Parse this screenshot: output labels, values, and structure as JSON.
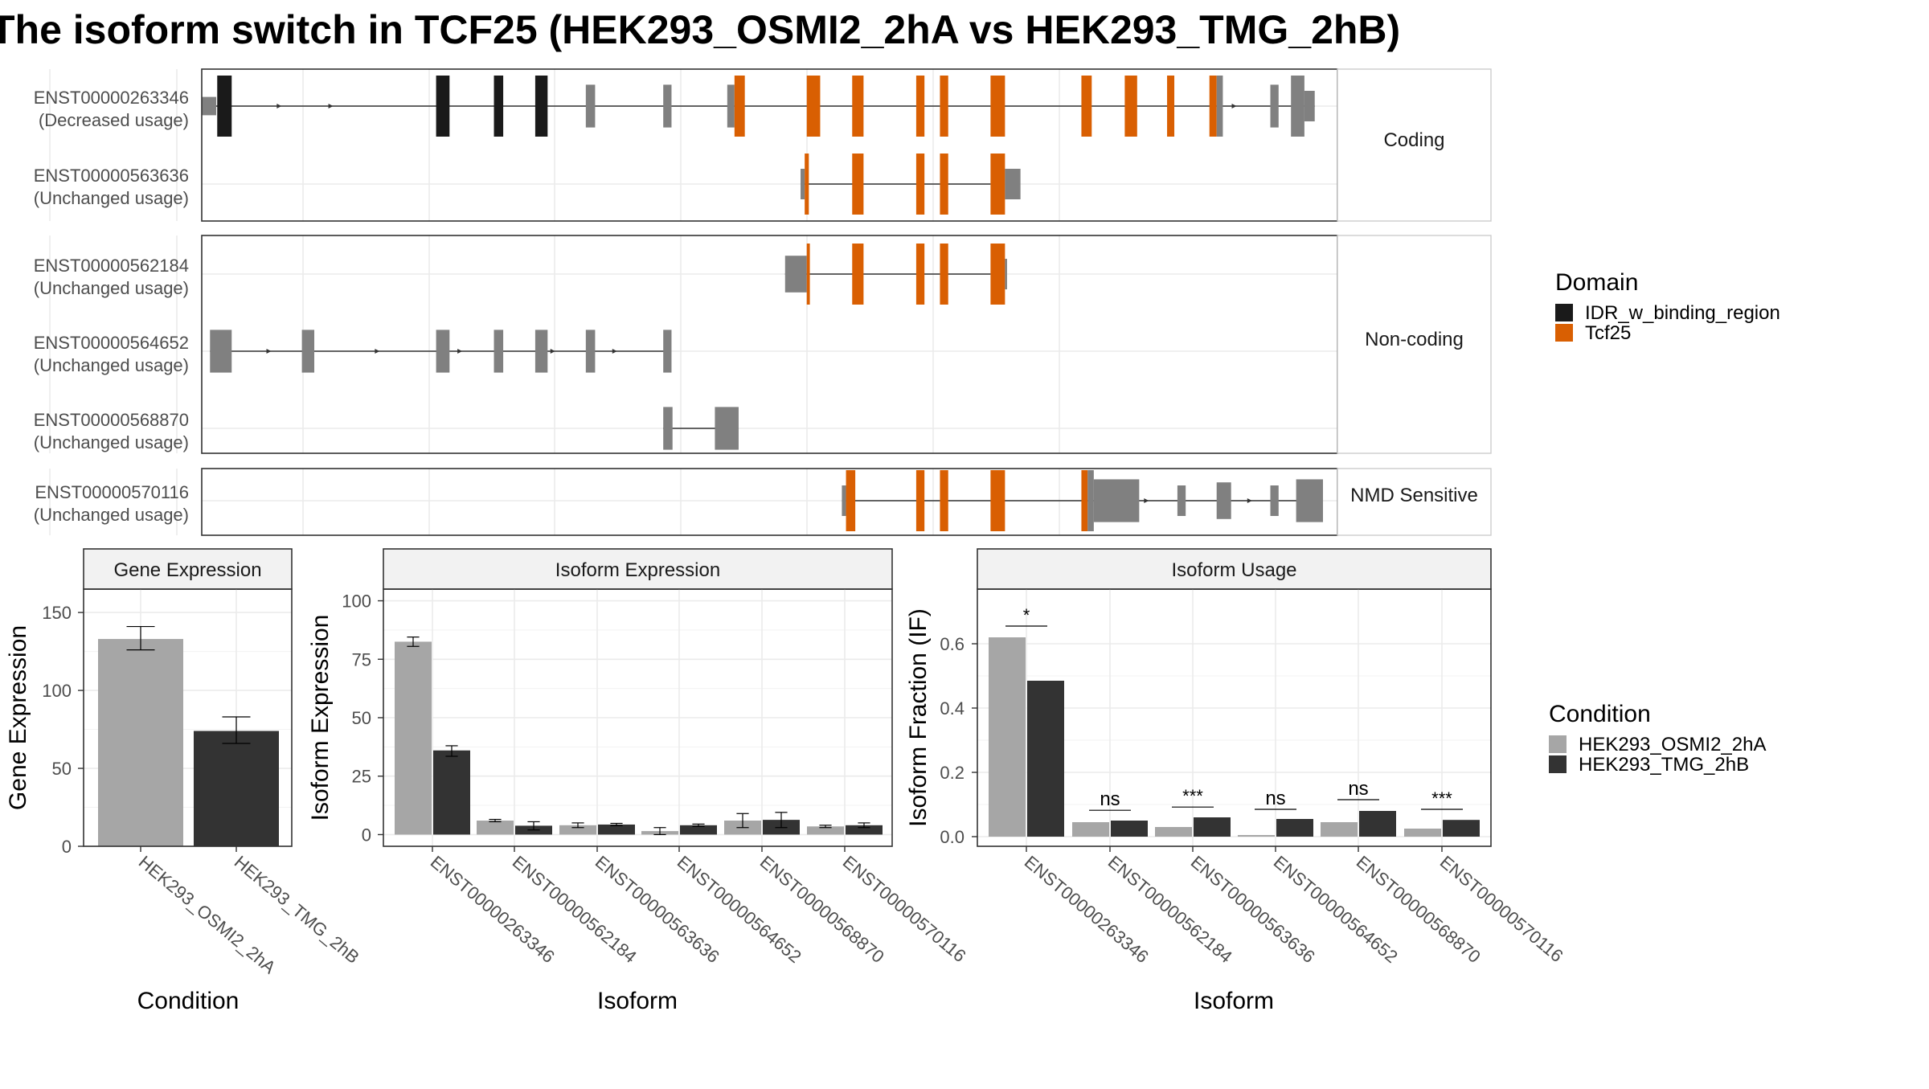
{
  "title": "The isoform switch in TCF25 (HEK293_OSMI2_2hA vs HEK293_TMG_2hB)",
  "colors": {
    "idr": "#1a1a1a",
    "tcf25": "#d95f02",
    "utr": "#808080",
    "osmi2": "#a6a6a6",
    "tmg": "#333333",
    "grid": "#ebebeb",
    "strip": "#f2f2f2",
    "border": "#333333"
  },
  "legend_domain": {
    "title": "Domain",
    "items": [
      {
        "label": "IDR_w_binding_region",
        "color": "#1a1a1a"
      },
      {
        "label": "Tcf25",
        "color": "#d95f02"
      }
    ]
  },
  "legend_condition": {
    "title": "Condition",
    "items": [
      {
        "label": "HEK293_OSMI2_2hA",
        "color": "#a6a6a6"
      },
      {
        "label": "HEK293_TMG_2hB",
        "color": "#333333"
      }
    ]
  },
  "structure": {
    "groups": [
      {
        "label": "Coding",
        "transcripts": [
          {
            "id": "ENST00000263346",
            "usage": "(Decreased usage)",
            "line": [
              5,
              1078
            ],
            "features": [
              [
                "utr",
                0,
                14,
                0.3
              ],
              [
                "idr",
                15,
                29,
                1
              ],
              [
                "idr",
                227,
                240,
                1
              ],
              [
                "idr",
                283,
                292,
                1
              ],
              [
                "idr",
                323,
                335,
                1
              ],
              [
                "utr",
                372,
                381,
                0.7
              ],
              [
                "utr",
                447,
                455,
                0.7
              ],
              [
                "utr",
                509,
                516,
                0.7
              ],
              [
                "tcf25",
                516,
                526,
                1
              ],
              [
                "tcf25",
                586,
                599,
                1
              ],
              [
                "tcf25",
                630,
                641,
                1
              ],
              [
                "tcf25",
                692,
                700,
                1
              ],
              [
                "tcf25",
                715,
                723,
                1
              ],
              [
                "tcf25",
                764,
                778,
                1
              ],
              [
                "tcf25",
                852,
                862,
                1
              ],
              [
                "tcf25",
                894,
                906,
                1
              ],
              [
                "tcf25",
                935,
                942,
                1
              ],
              [
                "tcf25",
                976,
                983,
                1
              ],
              [
                "utr",
                983,
                989,
                1
              ],
              [
                "utr",
                1035,
                1043,
                0.7
              ],
              [
                "utr",
                1055,
                1068,
                1
              ],
              [
                "utr",
                1068,
                1078,
                0.5
              ]
            ],
            "arrows": [
              75,
              125,
              902,
              1000
            ]
          },
          {
            "id": "ENST00000563636",
            "usage": "(Unchanged usage)",
            "line": [
              580,
              764
            ],
            "features": [
              [
                "utr",
                580,
                584,
                0.5
              ],
              [
                "tcf25",
                584,
                588,
                1
              ],
              [
                "tcf25",
                630,
                641,
                1
              ],
              [
                "tcf25",
                692,
                700,
                1
              ],
              [
                "tcf25",
                715,
                723,
                1
              ],
              [
                "tcf25",
                764,
                778,
                1
              ],
              [
                "utr",
                778,
                793,
                0.5
              ]
            ],
            "arrows": []
          }
        ]
      },
      {
        "label": "Non-coding",
        "transcripts": [
          {
            "id": "ENST00000562184",
            "usage": "(Unchanged usage)",
            "line": [
              565,
              764
            ],
            "features": [
              [
                "utr",
                565,
                586,
                0.6
              ],
              [
                "tcf25",
                586,
                589,
                1
              ],
              [
                "tcf25",
                630,
                641,
                1
              ],
              [
                "tcf25",
                692,
                700,
                1
              ],
              [
                "tcf25",
                715,
                723,
                1
              ],
              [
                "tcf25",
                764,
                778,
                1
              ],
              [
                "utr",
                778,
                780,
                0.5
              ]
            ],
            "arrows": []
          },
          {
            "id": "ENST00000564652",
            "usage": "(Unchanged usage)",
            "line": [
              8,
              450
            ],
            "features": [
              [
                "utr",
                8,
                29,
                0.7
              ],
              [
                "utr",
                97,
                109,
                0.7
              ],
              [
                "utr",
                227,
                240,
                0.7
              ],
              [
                "utr",
                283,
                292,
                0.7
              ],
              [
                "utr",
                323,
                335,
                0.7
              ],
              [
                "utr",
                372,
                381,
                0.7
              ],
              [
                "utr",
                447,
                455,
                0.7
              ]
            ],
            "arrows": [
              65,
              170,
              250,
              340,
              400
            ]
          },
          {
            "id": "ENST00000568870",
            "usage": "(Unchanged usage)",
            "line": [
              447,
              520
            ],
            "features": [
              [
                "utr",
                447,
                456,
                0.7
              ],
              [
                "utr",
                497,
                520,
                0.7
              ]
            ],
            "arrows": []
          }
        ]
      },
      {
        "label": "NMD Sensitive",
        "transcripts": [
          {
            "id": "ENST00000570116",
            "usage": "(Unchanged usage)",
            "line": [
              620,
              1075
            ],
            "features": [
              [
                "utr",
                620,
                624,
                0.5
              ],
              [
                "tcf25",
                624,
                633,
                1
              ],
              [
                "tcf25",
                692,
                700,
                1
              ],
              [
                "tcf25",
                715,
                723,
                1
              ],
              [
                "tcf25",
                764,
                778,
                1
              ],
              [
                "tcf25",
                852,
                858,
                1
              ],
              [
                "utr",
                858,
                864,
                1
              ],
              [
                "utr",
                864,
                908,
                0.7
              ],
              [
                "utr",
                945,
                953,
                0.5
              ],
              [
                "utr",
                983,
                997,
                0.6
              ],
              [
                "utr",
                1035,
                1043,
                0.5
              ],
              [
                "utr",
                1060,
                1086,
                0.7
              ]
            ],
            "arrows": [
              915,
              1015
            ]
          }
        ]
      }
    ]
  },
  "chart_data": [
    {
      "type": "bar",
      "title": "Gene Expression",
      "xlabel": "Condition",
      "ylabel": "Gene Expression",
      "categories": [
        "HEK293_OSMI2_2hA",
        "HEK293_TMG_2hB"
      ],
      "values": [
        133,
        74
      ],
      "errors": [
        [
          126,
          141
        ],
        [
          66,
          83
        ]
      ],
      "ylim": [
        0,
        165
      ],
      "yticks": [
        0,
        50,
        100,
        150
      ]
    },
    {
      "type": "bar",
      "title": "Isoform Expression",
      "xlabel": "Isoform",
      "ylabel": "Isoform Expression",
      "categories": [
        "ENST00000263346",
        "ENST00000562184",
        "ENST00000563636",
        "ENST00000564652",
        "ENST00000568870",
        "ENST00000570116"
      ],
      "series": [
        {
          "name": "HEK293_OSMI2_2hA",
          "values": [
            82.5,
            6,
            4,
            1.5,
            6,
            3.5
          ],
          "errors": [
            [
              80.5,
              84.5
            ],
            [
              5.5,
              6.5
            ],
            [
              3,
              5
            ],
            [
              0,
              3
            ],
            [
              3,
              9
            ],
            [
              3,
              4
            ]
          ]
        },
        {
          "name": "HEK293_TMG_2hB",
          "values": [
            36,
            3.8,
            4.3,
            4,
            6.3,
            4
          ],
          "errors": [
            [
              33.5,
              38
            ],
            [
              2,
              5.5
            ],
            [
              3.8,
              4.8
            ],
            [
              3.5,
              4.5
            ],
            [
              3,
              9.5
            ],
            [
              3,
              5
            ]
          ]
        }
      ],
      "ylim": [
        -5,
        105
      ],
      "yticks": [
        0,
        25,
        50,
        75,
        100
      ]
    },
    {
      "type": "bar",
      "title": "Isoform Usage",
      "xlabel": "Isoform",
      "ylabel": "Isoform Fraction (IF)",
      "categories": [
        "ENST00000263346",
        "ENST00000562184",
        "ENST00000563636",
        "ENST00000564652",
        "ENST00000568870",
        "ENST00000570116"
      ],
      "series": [
        {
          "name": "HEK293_OSMI2_2hA",
          "values": [
            0.62,
            0.045,
            0.03,
            0.005,
            0.045,
            0.025
          ]
        },
        {
          "name": "HEK293_TMG_2hB",
          "values": [
            0.485,
            0.05,
            0.06,
            0.055,
            0.08,
            0.052
          ]
        }
      ],
      "significance": [
        "*",
        "ns",
        "***",
        "ns",
        "ns",
        "***"
      ],
      "sig_y": [
        0.655,
        0.082,
        0.092,
        0.085,
        0.115,
        0.085
      ],
      "ylim": [
        -0.03,
        0.77
      ],
      "yticks": [
        0.0,
        0.2,
        0.4,
        0.6
      ],
      "ytick_labels": [
        "0.0",
        "0.2",
        "0.4",
        "0.6"
      ]
    }
  ]
}
